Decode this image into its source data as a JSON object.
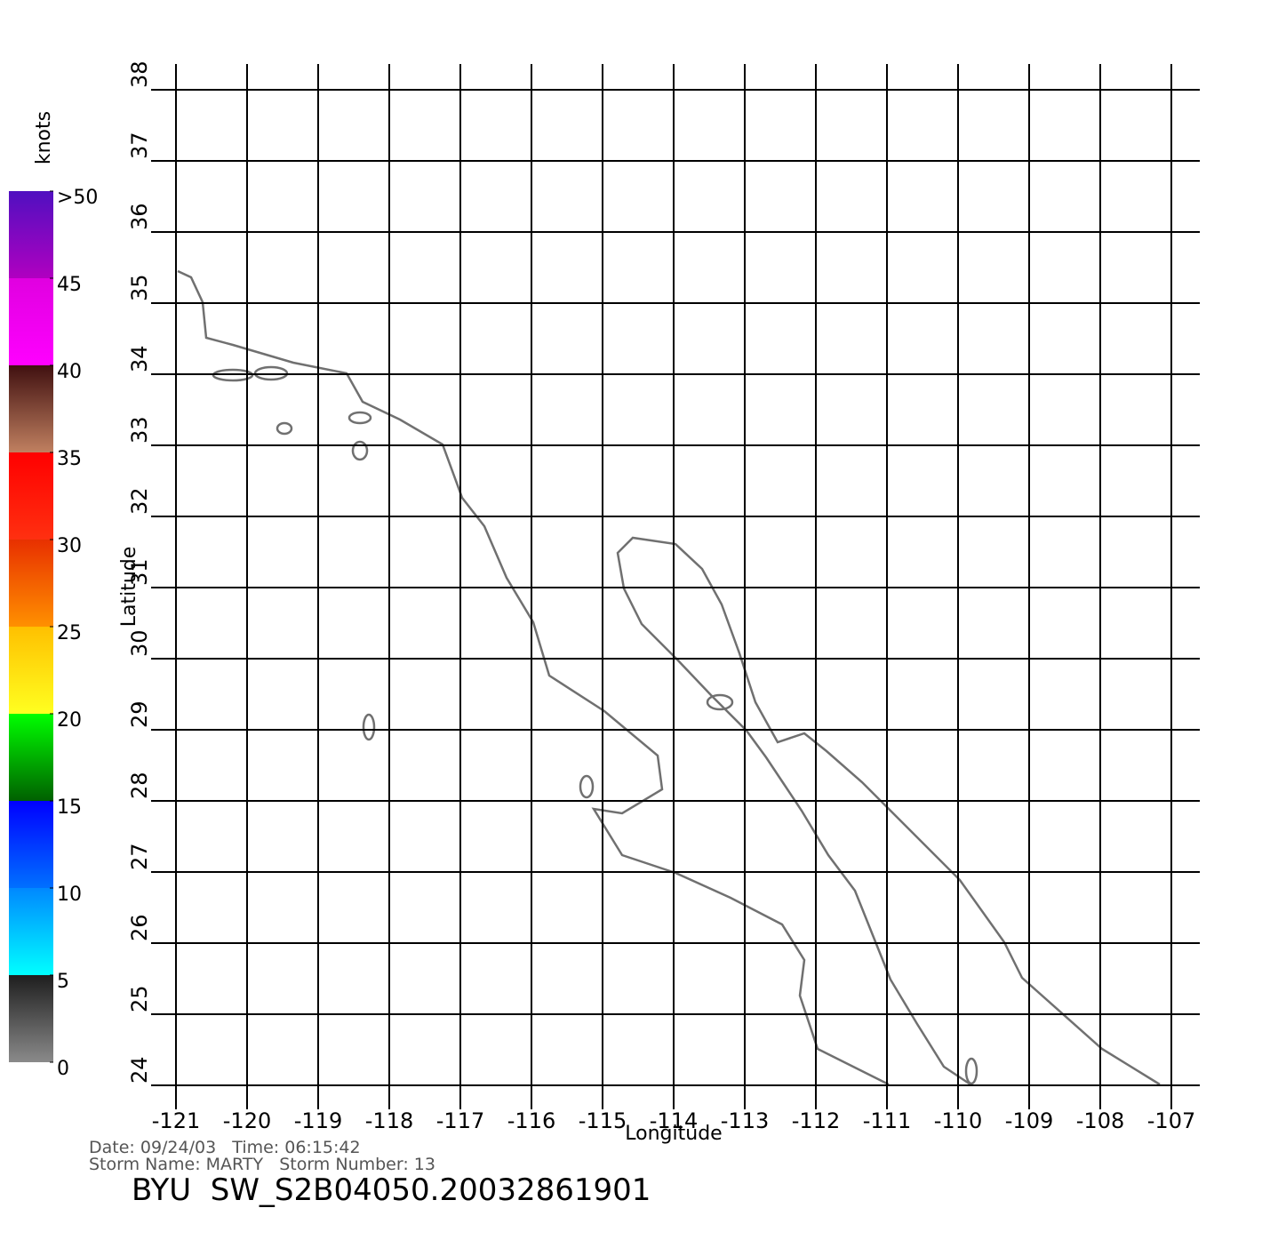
{
  "chart_data": {
    "type": "map",
    "xlabel": "Longitude",
    "ylabel": "Latitude",
    "xlim": [
      -121,
      -107
    ],
    "ylim": [
      24,
      38
    ],
    "xticks": [
      -121,
      -120,
      -119,
      -118,
      -117,
      -116,
      -115,
      -114,
      -113,
      -112,
      -111,
      -110,
      -109,
      -108,
      -107
    ],
    "yticks": [
      24,
      25,
      26,
      27,
      28,
      29,
      30,
      31,
      32,
      33,
      34,
      35,
      36,
      37,
      38
    ],
    "grid": true,
    "colorbar": {
      "title": "knots",
      "lim": [
        0,
        50
      ],
      "ticks": [
        0,
        5,
        10,
        15,
        20,
        25,
        30,
        35,
        40,
        45,
        {
          "value": 50,
          "label": ">50"
        }
      ],
      "segments": [
        {
          "from": 0,
          "to": 5,
          "colors": [
            "#8a8a8a",
            "#1e1e1e"
          ]
        },
        {
          "from": 5,
          "to": 10,
          "colors": [
            "#00ffff",
            "#0088ff"
          ]
        },
        {
          "from": 10,
          "to": 15,
          "colors": [
            "#0070ff",
            "#0000ff"
          ]
        },
        {
          "from": 15,
          "to": 20,
          "colors": [
            "#006000",
            "#00ff00"
          ]
        },
        {
          "from": 20,
          "to": 25,
          "colors": [
            "#ffff20",
            "#ffc000"
          ]
        },
        {
          "from": 25,
          "to": 30,
          "colors": [
            "#ff9000",
            "#e83000"
          ]
        },
        {
          "from": 30,
          "to": 35,
          "colors": [
            "#ff3010",
            "#ff0000"
          ]
        },
        {
          "from": 35,
          "to": 40,
          "colors": [
            "#c08060",
            "#401010"
          ]
        },
        {
          "from": 40,
          "to": 45,
          "colors": [
            "#ff00ff",
            "#e000e0"
          ]
        },
        {
          "from": 45,
          "to": 50,
          "colors": [
            "#b000c0",
            "#5010c0"
          ]
        }
      ]
    },
    "info": [
      "Date: 09/24/03   Time: 06:15:42",
      "Storm Name: MARTY   Storm Number: 13"
    ],
    "footer": "BYU  SW_S2B04050.20032861901"
  }
}
